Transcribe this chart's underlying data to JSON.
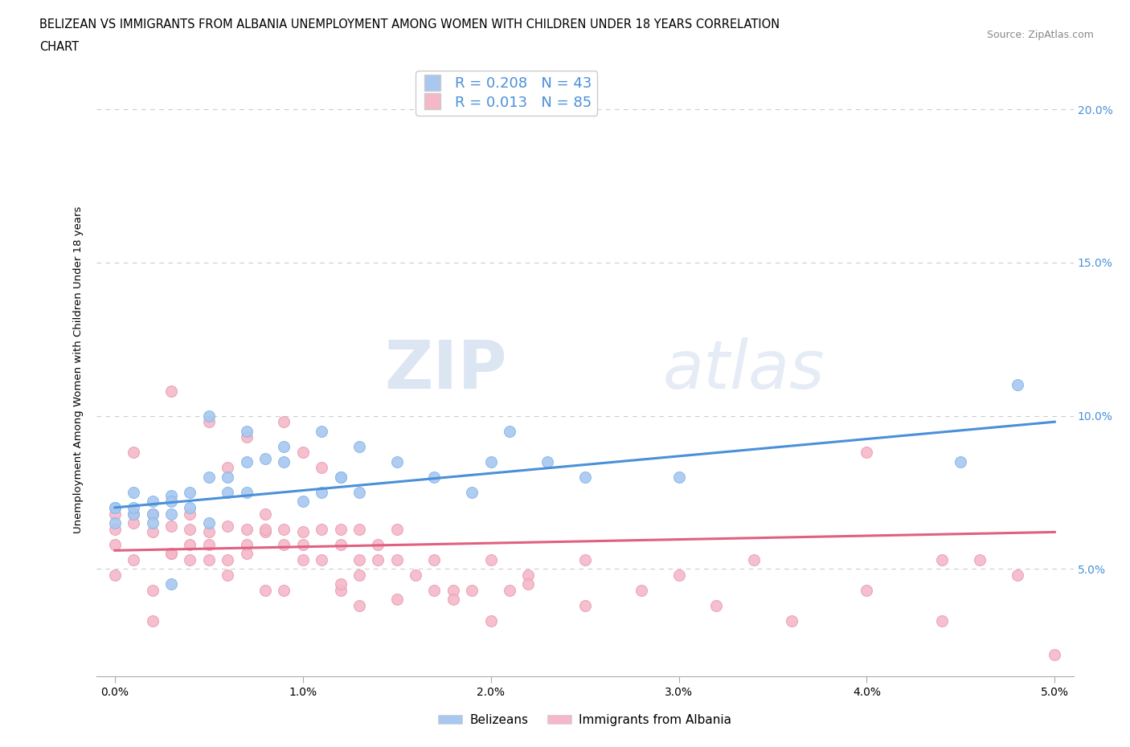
{
  "title_line1": "BELIZEAN VS IMMIGRANTS FROM ALBANIA UNEMPLOYMENT AMONG WOMEN WITH CHILDREN UNDER 18 YEARS CORRELATION",
  "title_line2": "CHART",
  "source_text": "Source: ZipAtlas.com",
  "ylabel": "Unemployment Among Women with Children Under 18 years",
  "x_tick_labels": [
    "0.0%",
    "1.0%",
    "2.0%",
    "3.0%",
    "4.0%",
    "5.0%"
  ],
  "y_tick_labels": [
    "5.0%",
    "10.0%",
    "15.0%",
    "20.0%"
  ],
  "xlim": [
    -0.001,
    0.051
  ],
  "ylim": [
    0.015,
    0.215
  ],
  "legend_label_belizeans": "Belizeans",
  "legend_label_albania": "Immigrants from Albania",
  "belizean_color": "#a8c8f0",
  "belizean_line_color": "#4a90d9",
  "albania_color": "#f5b8c8",
  "albania_line_color": "#e06080",
  "watermark_zip": "ZIP",
  "watermark_atlas": "atlas",
  "R_belizean": 0.208,
  "N_belizean": 43,
  "R_albania": 0.013,
  "N_albania": 85,
  "belizean_scatter_x": [
    0.0,
    0.001,
    0.002,
    0.003,
    0.004,
    0.005,
    0.006,
    0.007,
    0.008,
    0.009,
    0.01,
    0.011,
    0.012,
    0.013,
    0.003,
    0.005,
    0.007,
    0.009,
    0.011,
    0.013,
    0.015,
    0.017,
    0.019,
    0.021,
    0.023,
    0.0,
    0.001,
    0.002,
    0.003,
    0.004,
    0.005,
    0.006,
    0.02,
    0.025,
    0.03,
    0.048,
    0.045,
    0.0,
    0.001,
    0.002,
    0.003,
    0.007,
    0.012
  ],
  "belizean_scatter_y": [
    0.07,
    0.068,
    0.072,
    0.074,
    0.075,
    0.08,
    0.08,
    0.085,
    0.086,
    0.09,
    0.072,
    0.075,
    0.08,
    0.075,
    0.068,
    0.1,
    0.095,
    0.085,
    0.095,
    0.09,
    0.085,
    0.08,
    0.075,
    0.095,
    0.085,
    0.065,
    0.07,
    0.068,
    0.072,
    0.07,
    0.065,
    0.075,
    0.085,
    0.08,
    0.08,
    0.11,
    0.085,
    0.07,
    0.075,
    0.065,
    0.045,
    0.075,
    0.08
  ],
  "albania_scatter_x": [
    0.0,
    0.0,
    0.001,
    0.001,
    0.002,
    0.002,
    0.003,
    0.003,
    0.004,
    0.004,
    0.005,
    0.005,
    0.006,
    0.006,
    0.007,
    0.007,
    0.008,
    0.008,
    0.009,
    0.009,
    0.01,
    0.01,
    0.011,
    0.011,
    0.012,
    0.012,
    0.013,
    0.013,
    0.014,
    0.015,
    0.0,
    0.001,
    0.002,
    0.003,
    0.004,
    0.005,
    0.006,
    0.007,
    0.008,
    0.009,
    0.01,
    0.011,
    0.012,
    0.013,
    0.014,
    0.015,
    0.016,
    0.017,
    0.018,
    0.019,
    0.02,
    0.021,
    0.022,
    0.025,
    0.028,
    0.032,
    0.036,
    0.04,
    0.044,
    0.048,
    0.0,
    0.001,
    0.002,
    0.003,
    0.004,
    0.005,
    0.006,
    0.007,
    0.008,
    0.009,
    0.01,
    0.012,
    0.013,
    0.015,
    0.017,
    0.018,
    0.02,
    0.022,
    0.025,
    0.03,
    0.034,
    0.04,
    0.044,
    0.046,
    0.05
  ],
  "albania_scatter_y": [
    0.068,
    0.063,
    0.065,
    0.068,
    0.062,
    0.068,
    0.055,
    0.064,
    0.063,
    0.068,
    0.062,
    0.058,
    0.053,
    0.064,
    0.058,
    0.063,
    0.062,
    0.068,
    0.058,
    0.063,
    0.058,
    0.062,
    0.053,
    0.063,
    0.058,
    0.063,
    0.053,
    0.063,
    0.058,
    0.053,
    0.048,
    0.053,
    0.043,
    0.108,
    0.053,
    0.098,
    0.083,
    0.093,
    0.063,
    0.098,
    0.088,
    0.083,
    0.043,
    0.038,
    0.053,
    0.063,
    0.048,
    0.053,
    0.043,
    0.043,
    0.053,
    0.043,
    0.048,
    0.038,
    0.043,
    0.038,
    0.033,
    0.043,
    0.053,
    0.048,
    0.058,
    0.088,
    0.033,
    0.055,
    0.058,
    0.053,
    0.048,
    0.055,
    0.043,
    0.043,
    0.053,
    0.045,
    0.048,
    0.04,
    0.043,
    0.04,
    0.033,
    0.045,
    0.053,
    0.048,
    0.053,
    0.088,
    0.033,
    0.053,
    0.022
  ]
}
